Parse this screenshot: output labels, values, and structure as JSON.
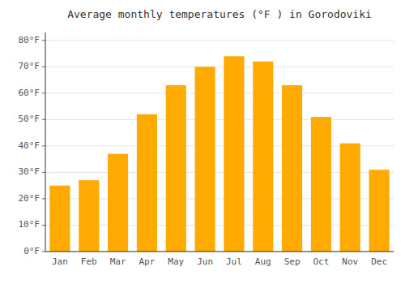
{
  "chart_data": {
    "type": "bar",
    "title": "Average monthly temperatures (°F ) in Gorodoviki",
    "categories": [
      "Jan",
      "Feb",
      "Mar",
      "Apr",
      "May",
      "Jun",
      "Jul",
      "Aug",
      "Sep",
      "Oct",
      "Nov",
      "Dec"
    ],
    "values": [
      25,
      27,
      37,
      52,
      63,
      70,
      74,
      72,
      63,
      51,
      41,
      31
    ],
    "color": "#FFAA00",
    "ylim": [
      0,
      83
    ],
    "yticks": [
      {
        "value": 0,
        "label": "0°F"
      },
      {
        "value": 10,
        "label": "10°F"
      },
      {
        "value": 20,
        "label": "20°F"
      },
      {
        "value": 30,
        "label": "30°F"
      },
      {
        "value": 40,
        "label": "40°F"
      },
      {
        "value": 50,
        "label": "50°F"
      },
      {
        "value": 60,
        "label": "60°F"
      },
      {
        "value": 70,
        "label": "70°F"
      },
      {
        "value": 80,
        "label": "80°F"
      }
    ],
    "grid": true
  }
}
